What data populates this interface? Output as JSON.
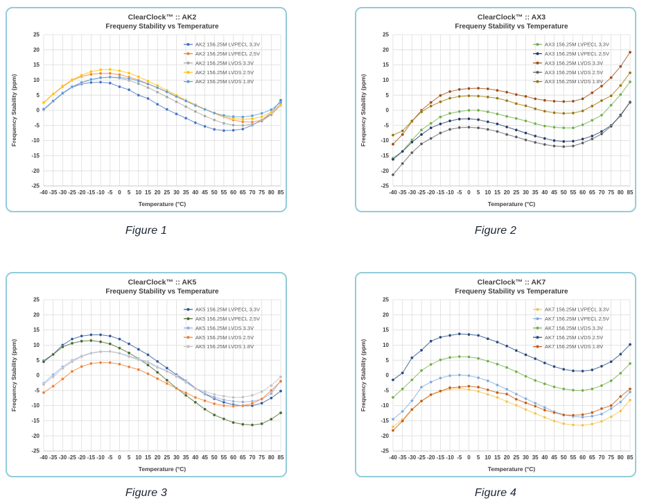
{
  "page": {
    "background": "#FFFFFF"
  },
  "styles": {
    "panel_border": "#92CBDB",
    "grid_color": "#DCDCDC",
    "axis_edge_color": "#C9C9C9",
    "title_color": "#3F3F3F",
    "tick_color": "#404040",
    "legend_text_color": "#595959",
    "caption_color": "#1A2433"
  },
  "figures": [
    {
      "caption": "Figure 1"
    },
    {
      "caption": "Figure 2"
    },
    {
      "caption": "Figure 3"
    },
    {
      "caption": "Figure 4"
    }
  ],
  "chart_data": [
    {
      "type": "line",
      "id": "ak2",
      "title": "ClearClock™ :: AK2",
      "subtitle": "Frequeny Stability vs Temperature",
      "xlabel": "Temperature (°C)",
      "ylabel": "Frequency Stability (ppm)",
      "x": [
        -40,
        -35,
        -30,
        -25,
        -20,
        -15,
        -10,
        -5,
        0,
        5,
        10,
        15,
        20,
        25,
        30,
        35,
        40,
        45,
        50,
        55,
        60,
        65,
        70,
        75,
        80,
        85
      ],
      "ylim": [
        -25,
        25
      ],
      "ytick_step": 5,
      "grid": true,
      "legend_position": "top-right",
      "series": [
        {
          "name": "AK2 156.25M LVPECL 3.3V",
          "color": "#4472C4",
          "values": [
            0.2,
            3.0,
            5.6,
            7.6,
            8.7,
            9.2,
            9.3,
            9.0,
            7.8,
            6.8,
            5.0,
            3.9,
            2.0,
            0.3,
            -1.2,
            -2.6,
            -4.1,
            -5.3,
            -6.3,
            -6.7,
            -6.6,
            -6.2,
            -4.9,
            -3.2,
            -0.9,
            3.3
          ]
        },
        {
          "name": "AK2 156.25M LVPECL 2.5V",
          "color": "#ED7D31",
          "values": [
            2.5,
            5.3,
            7.8,
            9.9,
            11.2,
            11.9,
            12.2,
            12.2,
            11.8,
            11.0,
            10.0,
            8.8,
            7.4,
            6.0,
            4.5,
            3.1,
            1.7,
            0.4,
            -1.0,
            -2.2,
            -3.2,
            -3.8,
            -3.9,
            -3.2,
            -1.2,
            1.6
          ]
        },
        {
          "name": "AK2 156.25M LVDS 3.3V",
          "color": "#A5A5A5",
          "values": [
            0.1,
            2.9,
            5.5,
            7.7,
            9.1,
            10.1,
            10.7,
            10.9,
            10.6,
            9.9,
            8.8,
            7.5,
            6.0,
            4.4,
            2.8,
            1.2,
            -0.4,
            -1.9,
            -3.2,
            -4.3,
            -4.9,
            -5.0,
            -4.6,
            -3.6,
            -1.5,
            1.8
          ]
        },
        {
          "name": "AK2 156.25M LVDS 2.5V",
          "color": "#FFC000",
          "values": [
            2.6,
            5.4,
            8.0,
            10.1,
            11.6,
            12.8,
            13.4,
            13.5,
            13.1,
            12.3,
            11.1,
            9.7,
            8.2,
            6.6,
            5.0,
            3.4,
            1.9,
            0.4,
            -0.9,
            -2.0,
            -2.7,
            -3.0,
            -2.8,
            -2.1,
            -0.6,
            2.0
          ]
        },
        {
          "name": "AK2 156.25M LVDS 1.8V",
          "color": "#5B9BD5",
          "values": [
            0.4,
            3.1,
            5.7,
            7.8,
            9.2,
            10.2,
            10.8,
            11.0,
            10.9,
            10.5,
            9.7,
            8.7,
            7.5,
            6.1,
            4.6,
            3.1,
            1.6,
            0.3,
            -0.9,
            -1.7,
            -2.1,
            -2.2,
            -1.8,
            -1.0,
            0.2,
            2.6
          ]
        }
      ]
    },
    {
      "type": "line",
      "id": "ax3",
      "title": "ClearClock™ :: AX3",
      "subtitle": "Frequeny Stability vs Temperature",
      "xlabel": "Temperature (°C)",
      "ylabel": "Frequency Stability (ppm)",
      "x": [
        -40,
        -35,
        -30,
        -25,
        -20,
        -15,
        -10,
        -5,
        0,
        5,
        10,
        15,
        20,
        25,
        30,
        35,
        40,
        45,
        50,
        55,
        60,
        65,
        70,
        75,
        80,
        85
      ],
      "ylim": [
        -25,
        25
      ],
      "ytick_step": 5,
      "grid": true,
      "legend_position": "top-right",
      "series": [
        {
          "name": "AX3 156.25M LVPECL 3.3V",
          "color": "#70AD47",
          "values": [
            -15.8,
            -13.5,
            -9.8,
            -6.5,
            -4.3,
            -2.2,
            -1.0,
            -0.4,
            0.0,
            0.0,
            -0.5,
            -1.2,
            -2.0,
            -2.7,
            -3.5,
            -4.4,
            -5.2,
            -5.6,
            -5.8,
            -5.8,
            -4.8,
            -3.3,
            -1.6,
            1.7,
            5.2,
            9.4
          ]
        },
        {
          "name": "AX3 156.25M LVPECL 2.5V",
          "color": "#1F3864",
          "values": [
            -16.2,
            -13.6,
            -10.5,
            -8.0,
            -5.8,
            -4.5,
            -3.5,
            -2.9,
            -2.8,
            -3.1,
            -3.8,
            -4.5,
            -5.5,
            -6.5,
            -7.5,
            -8.5,
            -9.3,
            -10.0,
            -10.3,
            -10.2,
            -9.5,
            -8.5,
            -7.0,
            -5.0,
            -1.8,
            2.8
          ]
        },
        {
          "name": "AX3 156.25M LVDS 3.3V",
          "color": "#9E480E",
          "values": [
            -11.2,
            -8.0,
            -3.7,
            0.0,
            2.6,
            4.9,
            6.2,
            6.9,
            7.2,
            7.3,
            7.1,
            6.6,
            6.0,
            5.2,
            4.6,
            3.8,
            3.3,
            3.0,
            2.9,
            3.0,
            3.8,
            5.8,
            8.0,
            10.8,
            14.5,
            19.2
          ]
        },
        {
          "name": "AX3 156.25M LVDS 2.5V",
          "color": "#595959",
          "values": [
            -21.3,
            -17.6,
            -14.0,
            -11.1,
            -9.3,
            -7.5,
            -6.3,
            -5.7,
            -5.6,
            -5.8,
            -6.3,
            -7.0,
            -8.0,
            -8.8,
            -9.8,
            -10.6,
            -11.3,
            -11.8,
            -12.0,
            -11.8,
            -10.8,
            -9.5,
            -7.8,
            -5.3,
            -1.5,
            2.6
          ]
        },
        {
          "name": "AX3 156.25M LVDS 1.8V",
          "color": "#997300",
          "values": [
            -8.2,
            -6.8,
            -3.5,
            -0.5,
            1.4,
            2.8,
            4.0,
            4.6,
            4.8,
            4.7,
            4.4,
            4.0,
            3.2,
            2.2,
            1.5,
            0.5,
            -0.3,
            -0.8,
            -1.0,
            -0.9,
            -0.2,
            1.4,
            3.2,
            4.8,
            8.2,
            12.4
          ]
        }
      ]
    },
    {
      "type": "line",
      "id": "ak5",
      "title": "ClearClock™ :: AK5",
      "subtitle": "Frequeny Stability vs Temperature",
      "xlabel": "Temperature (°C)",
      "ylabel": "Frequency Stability (ppm)",
      "x": [
        -40,
        -35,
        -30,
        -25,
        -20,
        -15,
        -10,
        -5,
        0,
        5,
        10,
        15,
        20,
        25,
        30,
        35,
        40,
        45,
        50,
        55,
        60,
        65,
        70,
        75,
        80,
        85
      ],
      "ylim": [
        -25,
        25
      ],
      "ytick_step": 5,
      "grid": true,
      "legend_position": "top-right",
      "series": [
        {
          "name": "AK5 156.25M LVPECL 3.3V",
          "color": "#2F5597",
          "values": [
            4.8,
            7.0,
            10.0,
            12.0,
            13.0,
            13.4,
            13.4,
            13.0,
            12.0,
            10.4,
            8.6,
            6.8,
            4.6,
            2.4,
            0.2,
            -1.8,
            -4.2,
            -6.2,
            -7.7,
            -8.9,
            -9.7,
            -10.1,
            -10.0,
            -9.2,
            -7.5,
            -5.2
          ]
        },
        {
          "name": "AK5 156.25M LVPECL 2.5V",
          "color": "#43682B",
          "values": [
            4.5,
            6.9,
            9.4,
            10.6,
            11.3,
            11.5,
            11.1,
            10.4,
            9.0,
            7.4,
            5.5,
            3.4,
            1.0,
            -1.6,
            -4.2,
            -6.6,
            -8.9,
            -11.2,
            -13.1,
            -14.4,
            -15.6,
            -16.2,
            -16.4,
            -16.0,
            -14.5,
            -12.4
          ]
        },
        {
          "name": "AK5 156.25M LVDS 3.3V",
          "color": "#8FAADC",
          "values": [
            -2.6,
            0.2,
            2.8,
            4.9,
            6.4,
            7.4,
            7.9,
            7.9,
            7.3,
            6.4,
            5.3,
            4.5,
            2.8,
            1.5,
            -0.2,
            -2.0,
            -4.3,
            -6.0,
            -7.2,
            -8.1,
            -8.6,
            -8.8,
            -8.6,
            -7.9,
            -6.0,
            -1.8
          ]
        },
        {
          "name": "AK5 156.25M LVDS 2.5V",
          "color": "#ED7D31",
          "values": [
            -5.7,
            -3.6,
            -1.2,
            1.3,
            2.9,
            3.9,
            4.2,
            4.2,
            3.7,
            2.8,
            1.9,
            0.5,
            -1.1,
            -2.7,
            -4.3,
            -5.8,
            -7.3,
            -8.4,
            -9.4,
            -10.0,
            -10.2,
            -10.0,
            -9.3,
            -7.8,
            -5.0,
            -2.0
          ]
        },
        {
          "name": "AK5 156.25M LVDS 1.8V",
          "color": "#BFBFBF",
          "values": [
            -3.0,
            -0.5,
            2.3,
            4.5,
            6.2,
            7.3,
            7.8,
            7.9,
            7.3,
            6.2,
            5.1,
            4.3,
            2.6,
            1.3,
            -0.4,
            -2.3,
            -4.4,
            -5.3,
            -6.3,
            -6.9,
            -7.3,
            -7.2,
            -6.6,
            -5.4,
            -3.4,
            -0.5
          ]
        }
      ]
    },
    {
      "type": "line",
      "id": "ak7",
      "title": "ClearClock™ :: AK7",
      "subtitle": "Frequeny Stability vs Temperature",
      "xlabel": "Temperature (°C)",
      "ylabel": "Frequency Stability (ppm)",
      "x": [
        -40,
        -35,
        -30,
        -25,
        -20,
        -15,
        -10,
        -5,
        0,
        5,
        10,
        15,
        20,
        25,
        30,
        35,
        40,
        45,
        50,
        55,
        60,
        65,
        70,
        75,
        80,
        85
      ],
      "ylim": [
        -25,
        25
      ],
      "ytick_step": 5,
      "grid": true,
      "legend_position": "top-right",
      "series": [
        {
          "name": "AK7 156.25M LVPECL 3.3V",
          "color": "#F2C14E",
          "values": [
            -17.0,
            -14.6,
            -11.2,
            -8.5,
            -6.5,
            -5.3,
            -4.6,
            -4.3,
            -4.7,
            -5.3,
            -6.3,
            -7.3,
            -8.7,
            -9.9,
            -11.3,
            -12.6,
            -13.9,
            -15.1,
            -16.0,
            -16.4,
            -16.5,
            -16.1,
            -15.2,
            -13.7,
            -11.8,
            -8.2
          ]
        },
        {
          "name": "AK7 156.25M LVPECL 2.5V",
          "color": "#7FA8DC",
          "values": [
            -14.5,
            -11.9,
            -8.4,
            -3.9,
            -2.2,
            -0.9,
            -0.1,
            0.1,
            -0.1,
            -0.8,
            -1.8,
            -3.2,
            -4.6,
            -6.2,
            -7.7,
            -9.2,
            -10.6,
            -12.0,
            -13.0,
            -13.6,
            -13.8,
            -13.5,
            -12.8,
            -11.0,
            -8.8,
            -5.5
          ]
        },
        {
          "name": "AK7 156.25M LVDS 3.3V",
          "color": "#70AD47",
          "values": [
            -7.3,
            -4.5,
            -1.5,
            1.6,
            3.6,
            5.1,
            5.9,
            6.2,
            6.1,
            5.6,
            4.7,
            3.7,
            2.6,
            1.2,
            -0.3,
            -1.7,
            -2.8,
            -3.8,
            -4.5,
            -4.9,
            -5.0,
            -4.5,
            -3.4,
            -1.8,
            0.7,
            3.9
          ]
        },
        {
          "name": "AK7 156.25M LVDS 2.5V",
          "color": "#24477F",
          "values": [
            -1.5,
            0.8,
            5.8,
            8.3,
            11.3,
            12.6,
            13.2,
            13.7,
            13.5,
            13.2,
            12.1,
            11.0,
            9.7,
            8.2,
            6.8,
            5.5,
            4.1,
            2.9,
            2.0,
            1.5,
            1.4,
            1.8,
            3.0,
            4.5,
            7.0,
            10.2
          ]
        },
        {
          "name": "AK7 156.25M LVDS 1.8V",
          "color": "#C55A11",
          "values": [
            -18.2,
            -15.1,
            -11.3,
            -8.5,
            -6.4,
            -5.2,
            -4.1,
            -3.9,
            -3.6,
            -3.9,
            -4.8,
            -5.7,
            -6.2,
            -7.9,
            -9.1,
            -10.2,
            -11.5,
            -12.3,
            -13.1,
            -13.2,
            -13.0,
            -12.3,
            -11.0,
            -10.0,
            -7.0,
            -4.5
          ]
        }
      ]
    }
  ]
}
